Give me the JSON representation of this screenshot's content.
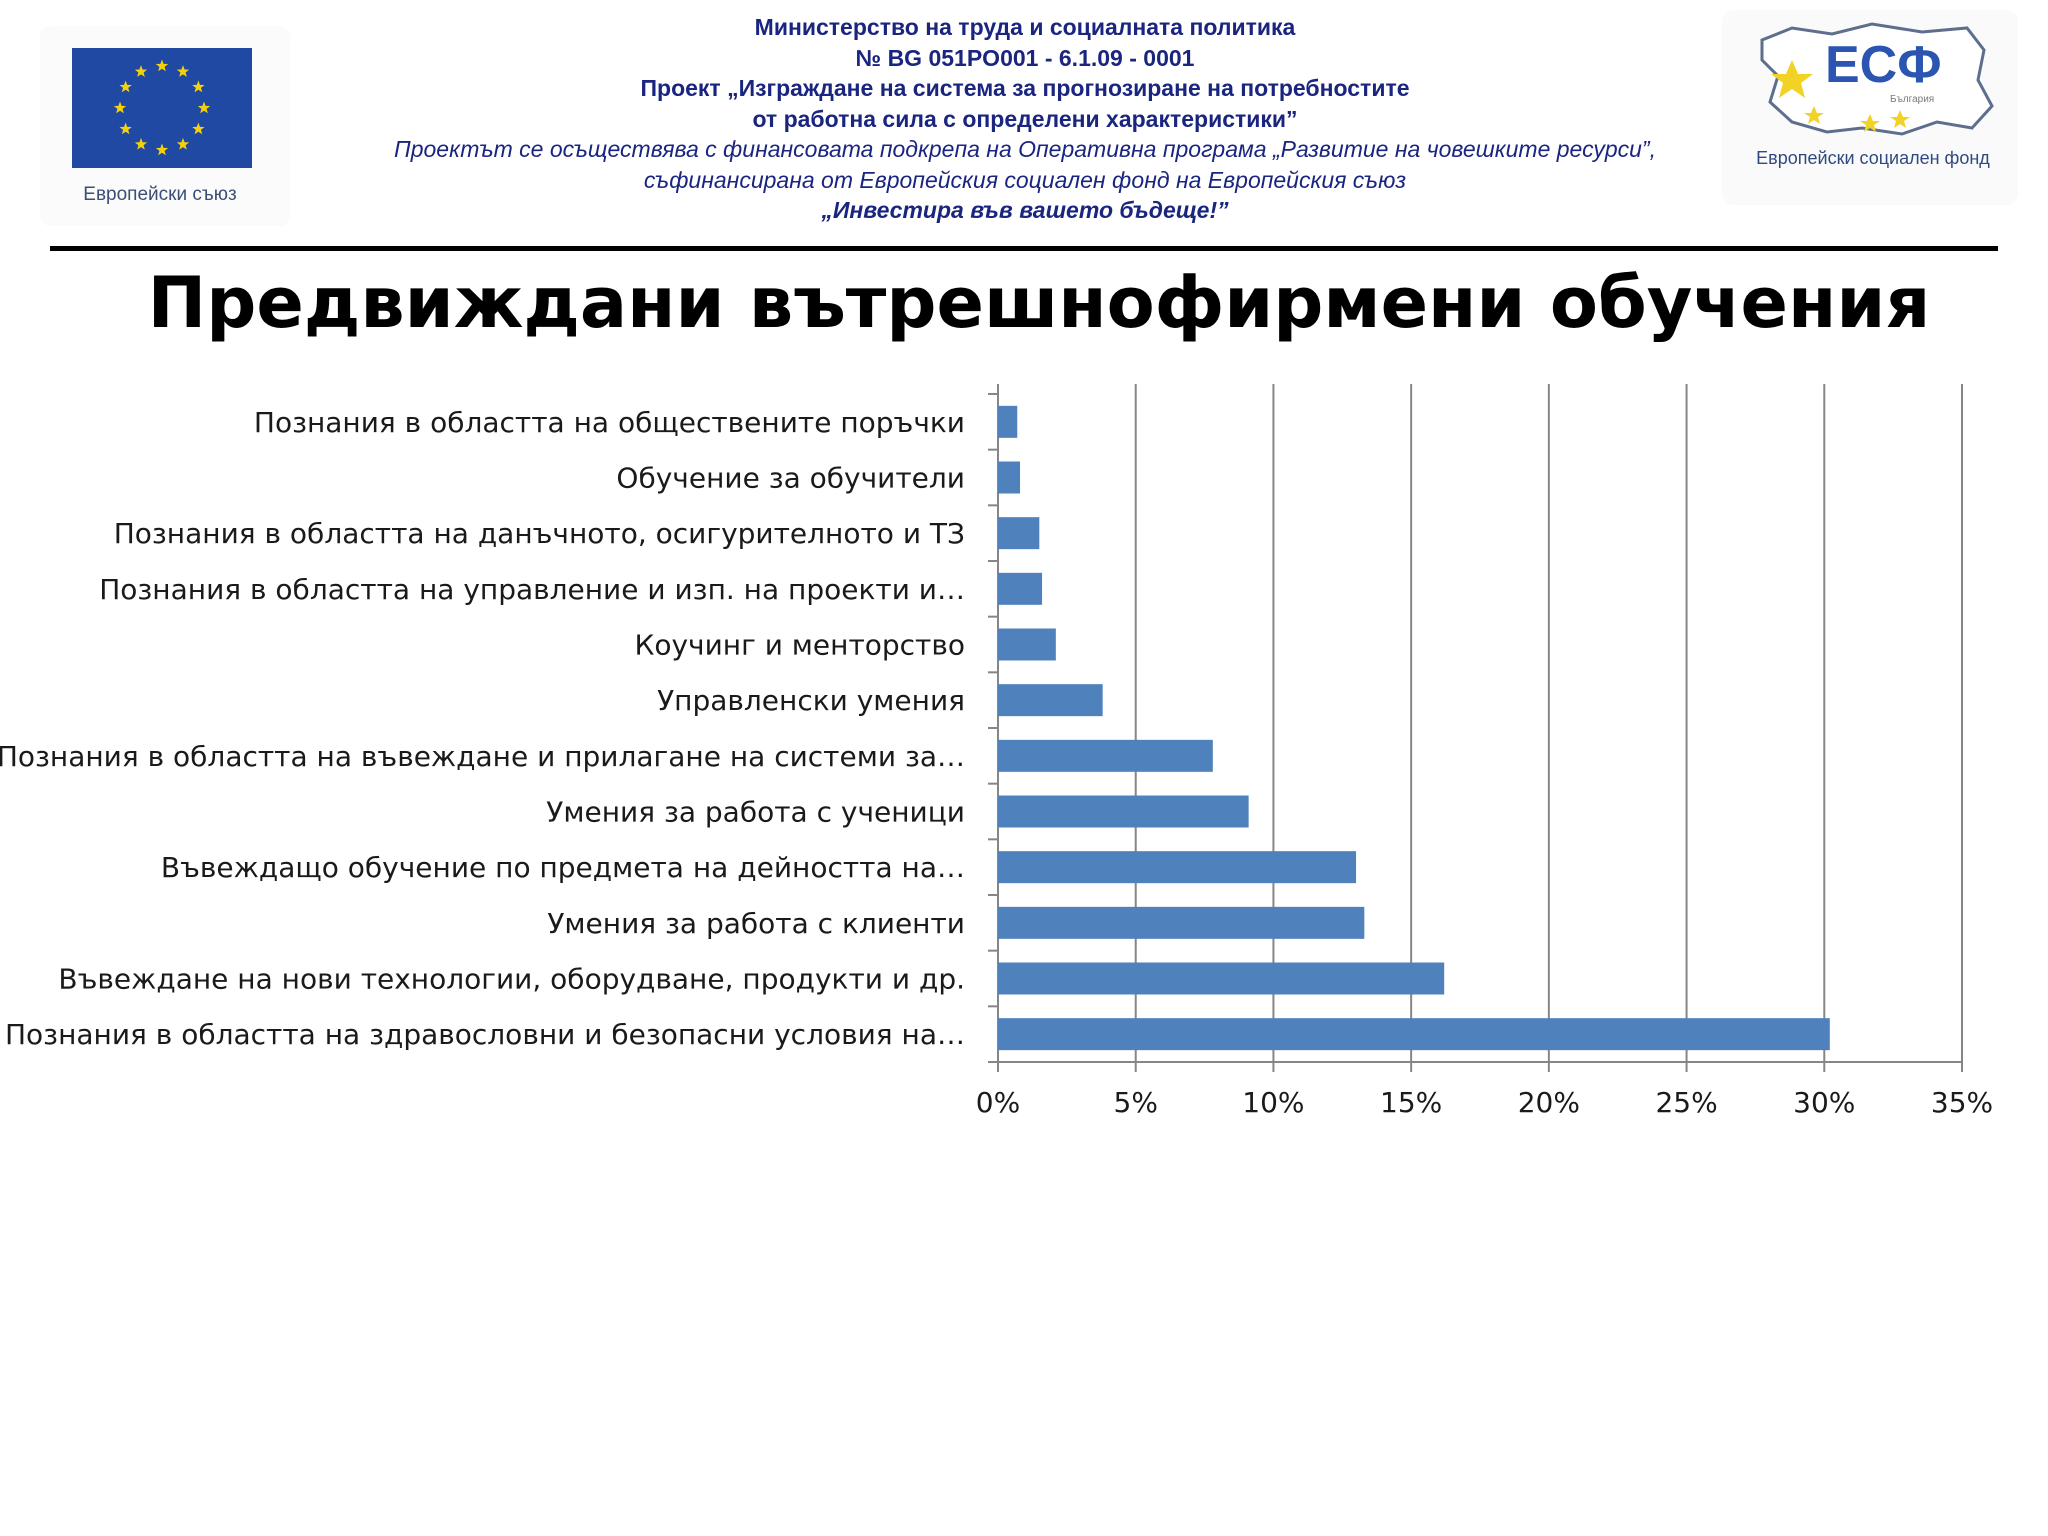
{
  "header": {
    "lines": [
      "Министерство на труда и социалната политика",
      "№ BG 051PO001 - 6.1.09 - 0001",
      "Проект „Изграждане на система за прогнозиране на потребностите",
      "от работна сила с определени характеристики”",
      "Проектът се осъществява с финансовата подкрепа на Оперативна програма „Развитие на човешките ресурси”,",
      "съфинансирана от Европейския социален фонд на Европейския съюз",
      "„Инвестира във вашето бъдеще!”"
    ],
    "eu_caption": "Европейски съюз",
    "esf_caption": "Европейски социален фонд",
    "esf_mark": "ЕСФ",
    "esf_country": "България"
  },
  "colors": {
    "bar": "#4f81bd",
    "grid": "#868686",
    "header_text": "#1a2580"
  },
  "chart_data": {
    "type": "bar",
    "orientation": "horizontal",
    "title": "Предвиждани  вътрешнофирмени обучения",
    "categories": [
      "Познания в областта на обществените поръчки",
      "Обучение за обучители",
      "Познания в областта на данъчното, осигурителното и ТЗ",
      "Познания в областта на управление и изп. на проекти и…",
      "Коучинг и менторство",
      "Управленски умения",
      "Познания в областта на въвеждане и прилагане на системи за…",
      "Умения за работа с ученици",
      "Въвеждащо обучение по предмета на дейността на…",
      "Умения за работа с клиенти",
      "Въвеждане на нови технологии, оборудване, продукти и др.",
      "Познания в областта на здравословни и безопасни условия на…"
    ],
    "values": [
      0.7,
      0.8,
      1.5,
      1.6,
      2.1,
      3.8,
      7.8,
      9.1,
      13.0,
      13.3,
      16.2,
      30.2
    ],
    "xlim": [
      0,
      35
    ],
    "xticks": [
      "0%",
      "5%",
      "10%",
      "15%",
      "20%",
      "25%",
      "30%",
      "35%"
    ],
    "grid": true,
    "legend": "none"
  }
}
